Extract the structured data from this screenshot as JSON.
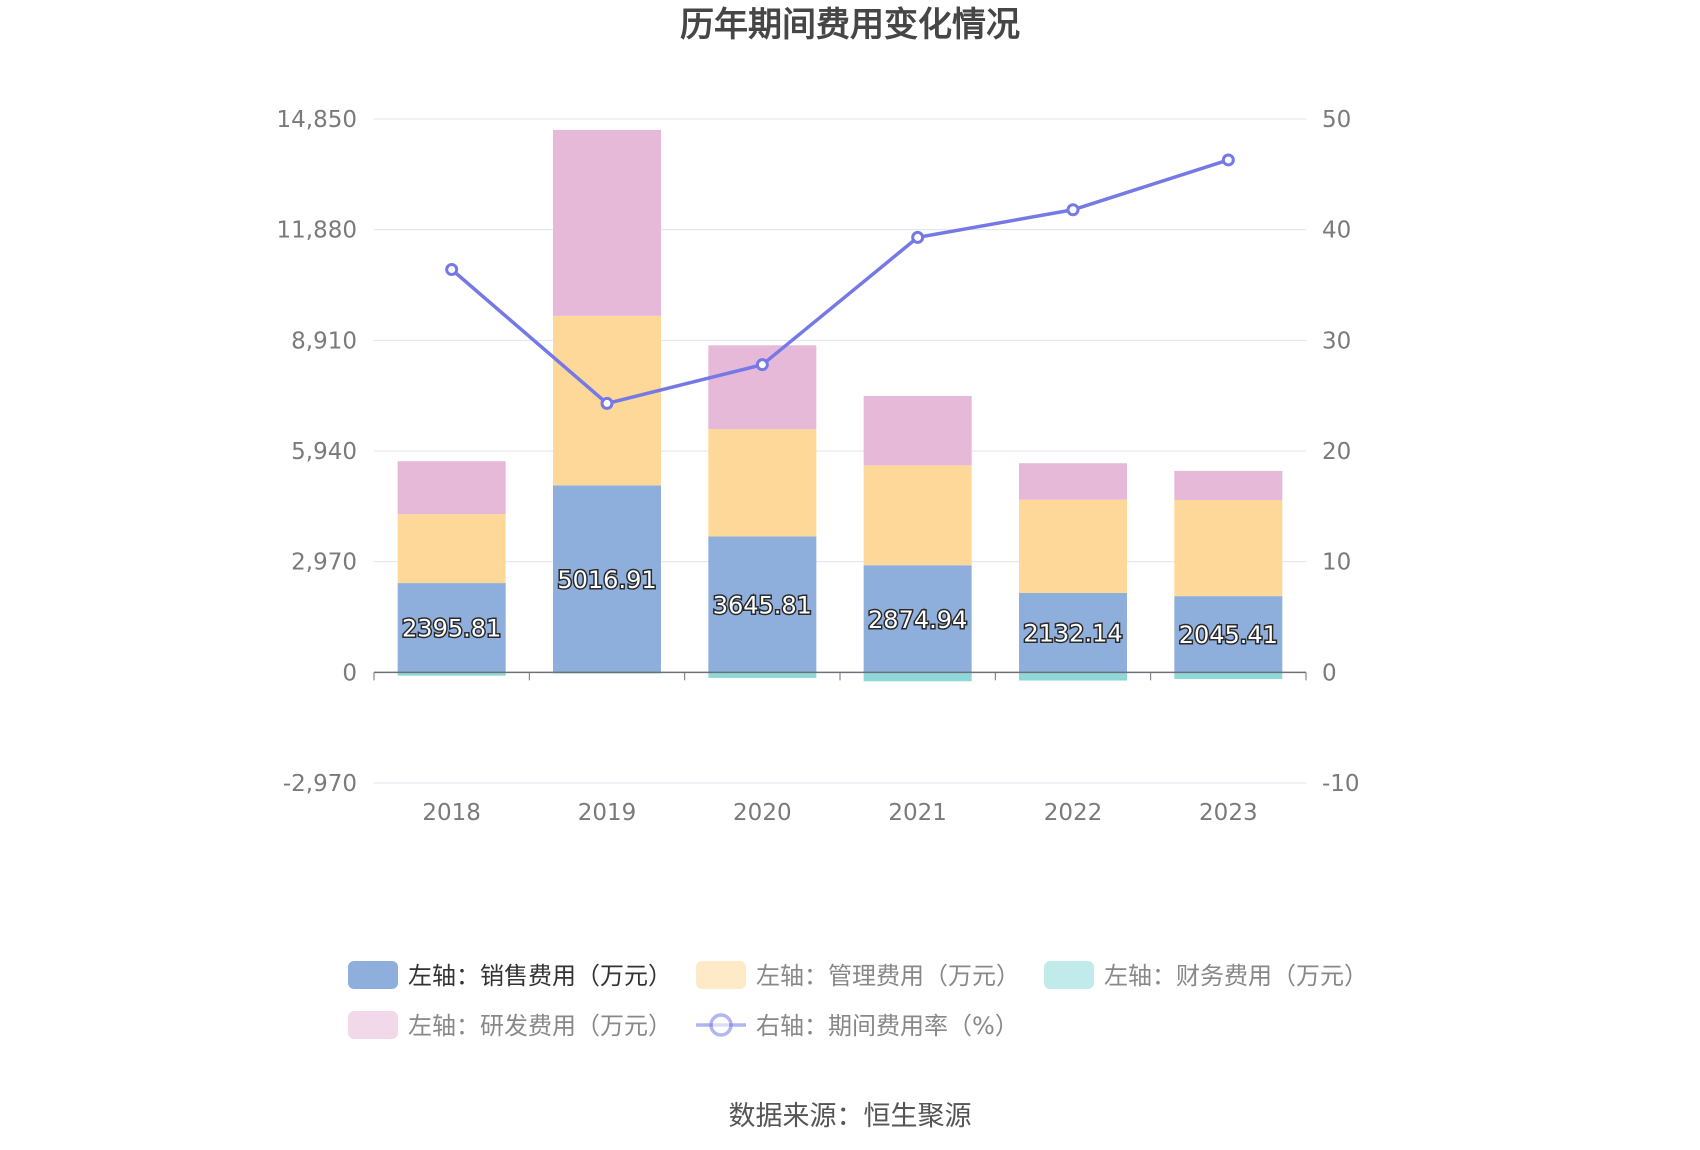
{
  "title": "历年期间费用变化情况",
  "source": "数据来源：恒生聚源",
  "colors": {
    "sales": "#8eafdb",
    "mgmt": "#fdd899",
    "finance": "#8ed8d8",
    "rd": "#e6b9d9",
    "rate": "#7479e6"
  },
  "legend": [
    {
      "key": "sales",
      "label": "左轴：销售费用（万元）",
      "kind": "bar"
    },
    {
      "key": "mgmt",
      "label": "左轴：管理费用（万元）",
      "kind": "bar"
    },
    {
      "key": "finance",
      "label": "左轴：财务费用（万元）",
      "kind": "bar"
    },
    {
      "key": "rd",
      "label": "左轴：研发费用（万元）",
      "kind": "bar"
    },
    {
      "key": "rate",
      "label": "右轴：期间费用率（%）",
      "kind": "line"
    }
  ],
  "chart_data": {
    "type": "bar",
    "stacked": true,
    "categories": [
      "2018",
      "2019",
      "2020",
      "2021",
      "2022",
      "2023"
    ],
    "left_axis": {
      "ticks": [
        "14,850",
        "11,880",
        "8,910",
        "5,940",
        "2,970",
        "0",
        "-2,970"
      ],
      "ylim": [
        -2970,
        14850
      ]
    },
    "right_axis": {
      "ticks": [
        "50",
        "40",
        "30",
        "20",
        "10",
        "0",
        "-10"
      ],
      "ylim": [
        -10,
        50
      ]
    },
    "series": [
      {
        "key": "sales",
        "name": "左轴：销售费用（万元）",
        "values": [
          2395.81,
          5016.91,
          3645.81,
          2874.94,
          2132.14,
          2045.41
        ],
        "labels": [
          "2395.81",
          "5016.91",
          "3645.81",
          "2874.94",
          "2132.14",
          "2045.41"
        ]
      },
      {
        "key": "mgmt",
        "name": "左轴：管理费用（万元）",
        "values": [
          1850,
          4550,
          2880,
          2680,
          2500,
          2580
        ]
      },
      {
        "key": "finance",
        "name": "左轴：财务费用（万元）",
        "values": [
          -90,
          -30,
          -150,
          -240,
          -220,
          -180
        ]
      },
      {
        "key": "rd",
        "name": "左轴：研发费用（万元）",
        "values": [
          1420,
          4990,
          2250,
          1860,
          980,
          780
        ]
      },
      {
        "key": "rate",
        "name": "右轴：期间费用率（%）",
        "axis": "right",
        "type": "line",
        "values": [
          36.4,
          24.3,
          27.8,
          39.3,
          41.8,
          46.3
        ]
      }
    ],
    "grid": true,
    "legend_position": "bottom"
  }
}
